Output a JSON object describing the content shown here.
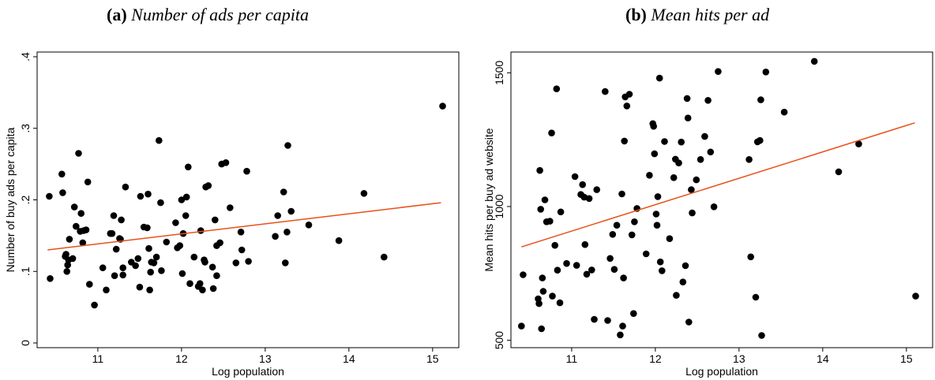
{
  "panels": [
    {
      "tag": "(a)",
      "title": "Number of ads per capita"
    },
    {
      "tag": "(b)",
      "title": "Mean hits per ad"
    }
  ],
  "colors": {
    "points": "#000000",
    "fit_line": "#e8501a",
    "frame": "#000000"
  },
  "chart_data": [
    {
      "type": "scatter",
      "title": "Number of ads per capita",
      "xlabel": "Log population",
      "ylabel": "Number of buy ads per capita",
      "xlim": [
        10.35,
        15.2
      ],
      "ylim": [
        0,
        0.4
      ],
      "xticks": [
        11,
        12,
        13,
        14,
        15
      ],
      "xtick_labels": [
        "11",
        "12",
        "13",
        "14",
        "15"
      ],
      "yticks": [
        0,
        0.1,
        0.2,
        0.3,
        0.4
      ],
      "ytick_labels": [
        "0",
        ".1",
        ".2",
        ".3",
        ".4"
      ],
      "grid": false,
      "fit_line": {
        "x": [
          10.4,
          15.1
        ],
        "y": [
          0.13,
          0.196
        ]
      },
      "points": [
        [
          10.42,
          0.205
        ],
        [
          10.43,
          0.09
        ],
        [
          10.57,
          0.236
        ],
        [
          10.58,
          0.21
        ],
        [
          10.61,
          0.121
        ],
        [
          10.62,
          0.124
        ],
        [
          10.63,
          0.1
        ],
        [
          10.64,
          0.109
        ],
        [
          10.65,
          0.116
        ],
        [
          10.66,
          0.145
        ],
        [
          10.7,
          0.118
        ],
        [
          10.72,
          0.19
        ],
        [
          10.74,
          0.163
        ],
        [
          10.77,
          0.265
        ],
        [
          10.79,
          0.156
        ],
        [
          10.8,
          0.181
        ],
        [
          10.82,
          0.14
        ],
        [
          10.83,
          0.157
        ],
        [
          10.86,
          0.158
        ],
        [
          10.88,
          0.225
        ],
        [
          10.9,
          0.082
        ],
        [
          10.96,
          0.053
        ],
        [
          11.06,
          0.105
        ],
        [
          11.1,
          0.074
        ],
        [
          11.15,
          0.153
        ],
        [
          11.17,
          0.153
        ],
        [
          11.19,
          0.178
        ],
        [
          11.2,
          0.094
        ],
        [
          11.22,
          0.131
        ],
        [
          11.26,
          0.146
        ],
        [
          11.27,
          0.145
        ],
        [
          11.28,
          0.172
        ],
        [
          11.3,
          0.095
        ],
        [
          11.3,
          0.105
        ],
        [
          11.33,
          0.218
        ],
        [
          11.4,
          0.113
        ],
        [
          11.45,
          0.108
        ],
        [
          11.48,
          0.118
        ],
        [
          11.5,
          0.078
        ],
        [
          11.51,
          0.205
        ],
        [
          11.55,
          0.162
        ],
        [
          11.59,
          0.161
        ],
        [
          11.6,
          0.208
        ],
        [
          11.61,
          0.132
        ],
        [
          11.62,
          0.074
        ],
        [
          11.63,
          0.099
        ],
        [
          11.64,
          0.113
        ],
        [
          11.67,
          0.112
        ],
        [
          11.7,
          0.12
        ],
        [
          11.73,
          0.283
        ],
        [
          11.75,
          0.196
        ],
        [
          11.76,
          0.101
        ],
        [
          11.82,
          0.141
        ],
        [
          11.93,
          0.168
        ],
        [
          11.95,
          0.133
        ],
        [
          11.98,
          0.136
        ],
        [
          12.0,
          0.2
        ],
        [
          12.01,
          0.097
        ],
        [
          12.02,
          0.153
        ],
        [
          12.05,
          0.178
        ],
        [
          12.06,
          0.204
        ],
        [
          12.08,
          0.246
        ],
        [
          12.1,
          0.083
        ],
        [
          12.15,
          0.12
        ],
        [
          12.2,
          0.079
        ],
        [
          12.22,
          0.083
        ],
        [
          12.23,
          0.157
        ],
        [
          12.25,
          0.074
        ],
        [
          12.27,
          0.116
        ],
        [
          12.28,
          0.113
        ],
        [
          12.29,
          0.218
        ],
        [
          12.32,
          0.22
        ],
        [
          12.37,
          0.106
        ],
        [
          12.38,
          0.076
        ],
        [
          12.4,
          0.172
        ],
        [
          12.42,
          0.136
        ],
        [
          12.42,
          0.094
        ],
        [
          12.46,
          0.14
        ],
        [
          12.48,
          0.25
        ],
        [
          12.53,
          0.252
        ],
        [
          12.58,
          0.189
        ],
        [
          12.65,
          0.112
        ],
        [
          12.71,
          0.155
        ],
        [
          12.72,
          0.13
        ],
        [
          12.78,
          0.24
        ],
        [
          12.8,
          0.114
        ],
        [
          13.12,
          0.149
        ],
        [
          13.15,
          0.178
        ],
        [
          13.22,
          0.211
        ],
        [
          13.24,
          0.112
        ],
        [
          13.26,
          0.155
        ],
        [
          13.27,
          0.276
        ],
        [
          13.31,
          0.184
        ],
        [
          13.52,
          0.165
        ],
        [
          13.88,
          0.143
        ],
        [
          14.18,
          0.209
        ],
        [
          14.42,
          0.12
        ],
        [
          15.12,
          0.331
        ]
      ]
    },
    {
      "type": "scatter",
      "title": "Mean hits per ad",
      "xlabel": "Log population",
      "ylabel": "Mean hits per buy ad website",
      "xlim": [
        10.35,
        15.2
      ],
      "ylim": [
        490,
        1560
      ],
      "xticks": [
        11,
        12,
        13,
        14,
        15
      ],
      "xtick_labels": [
        "11",
        "12",
        "13",
        "14",
        "15"
      ],
      "yticks": [
        500,
        1000,
        1500
      ],
      "ytick_labels": [
        "500",
        "1000",
        "1500"
      ],
      "grid": false,
      "fit_line": {
        "x": [
          10.4,
          15.1
        ],
        "y": [
          849,
          1313
        ]
      },
      "points": [
        [
          10.4,
          553
        ],
        [
          10.42,
          745
        ],
        [
          10.6,
          655
        ],
        [
          10.61,
          637
        ],
        [
          10.62,
          1135
        ],
        [
          10.63,
          990
        ],
        [
          10.64,
          543
        ],
        [
          10.65,
          733
        ],
        [
          10.66,
          683
        ],
        [
          10.68,
          1025
        ],
        [
          10.7,
          943
        ],
        [
          10.74,
          945
        ],
        [
          10.76,
          1275
        ],
        [
          10.77,
          665
        ],
        [
          10.8,
          855
        ],
        [
          10.82,
          1440
        ],
        [
          10.83,
          762
        ],
        [
          10.86,
          640
        ],
        [
          10.87,
          980
        ],
        [
          10.94,
          787
        ],
        [
          11.04,
          1112
        ],
        [
          11.06,
          780
        ],
        [
          11.11,
          1045
        ],
        [
          11.13,
          1082
        ],
        [
          11.15,
          1035
        ],
        [
          11.16,
          858
        ],
        [
          11.18,
          747
        ],
        [
          11.21,
          1030
        ],
        [
          11.24,
          763
        ],
        [
          11.27,
          578
        ],
        [
          11.3,
          1063
        ],
        [
          11.4,
          1430
        ],
        [
          11.43,
          574
        ],
        [
          11.46,
          806
        ],
        [
          11.49,
          896
        ],
        [
          11.51,
          765
        ],
        [
          11.54,
          930
        ],
        [
          11.58,
          520
        ],
        [
          11.6,
          1047
        ],
        [
          11.61,
          553
        ],
        [
          11.62,
          733
        ],
        [
          11.63,
          1245
        ],
        [
          11.64,
          1410
        ],
        [
          11.66,
          1376
        ],
        [
          11.69,
          1420
        ],
        [
          11.72,
          894
        ],
        [
          11.74,
          600
        ],
        [
          11.75,
          943
        ],
        [
          11.78,
          993
        ],
        [
          11.89,
          823
        ],
        [
          11.93,
          1117
        ],
        [
          11.97,
          1310
        ],
        [
          11.98,
          1300
        ],
        [
          11.99,
          1197
        ],
        [
          12.01,
          972
        ],
        [
          12.02,
          930
        ],
        [
          12.03,
          1037
        ],
        [
          12.05,
          1480
        ],
        [
          12.06,
          793
        ],
        [
          12.08,
          760
        ],
        [
          12.11,
          1243
        ],
        [
          12.17,
          880
        ],
        [
          12.22,
          1108
        ],
        [
          12.24,
          1177
        ],
        [
          12.25,
          668
        ],
        [
          12.28,
          1163
        ],
        [
          12.31,
          1241
        ],
        [
          12.33,
          718
        ],
        [
          12.36,
          779
        ],
        [
          12.38,
          1404
        ],
        [
          12.39,
          1331
        ],
        [
          12.4,
          568
        ],
        [
          12.43,
          1063
        ],
        [
          12.44,
          976
        ],
        [
          12.49,
          1100
        ],
        [
          12.54,
          1176
        ],
        [
          12.59,
          1262
        ],
        [
          12.63,
          1397
        ],
        [
          12.66,
          1204
        ],
        [
          12.7,
          999
        ],
        [
          12.75,
          1505
        ],
        [
          13.12,
          1176
        ],
        [
          13.14,
          812
        ],
        [
          13.2,
          661
        ],
        [
          13.22,
          1242
        ],
        [
          13.25,
          1247
        ],
        [
          13.26,
          1399
        ],
        [
          13.27,
          518
        ],
        [
          13.32,
          1503
        ],
        [
          13.54,
          1353
        ],
        [
          13.9,
          1543
        ],
        [
          14.19,
          1130
        ],
        [
          14.43,
          1234
        ],
        [
          15.11,
          665
        ]
      ]
    }
  ]
}
